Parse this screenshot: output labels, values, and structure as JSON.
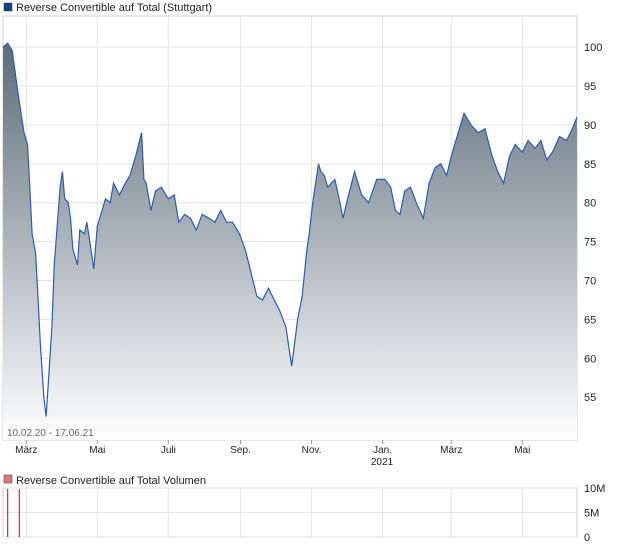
{
  "chart_data": [
    {
      "type": "area",
      "legend_label": "Reverse Convertible auf Total  (Stuttgart)",
      "legend_color": "#1f3c88",
      "line_color": "#2a5bb5",
      "fill_top_color": "#5c6c7a",
      "fill_bottom_color": "#ffffff",
      "ylim": [
        49.5,
        104
      ],
      "y_scale": "linear-plotted",
      "yticks": [
        100,
        95,
        90,
        85,
        80,
        75,
        70,
        65,
        60,
        55
      ],
      "x_range": [
        "2020-02-10",
        "2021-06-17"
      ],
      "xtick_labels": [
        {
          "date": "2020-03-01",
          "label": "März"
        },
        {
          "date": "2020-05-01",
          "label": "Mai"
        },
        {
          "date": "2020-07-01",
          "label": "Juli"
        },
        {
          "date": "2020-09-01",
          "label": "Sep."
        },
        {
          "date": "2020-11-01",
          "label": "Nov."
        },
        {
          "date": "2021-01-01",
          "label": "Jan."
        },
        {
          "date": "2021-03-01",
          "label": "März"
        },
        {
          "date": "2021-05-01",
          "label": "Mai"
        }
      ],
      "year_label": "2021",
      "date_range_label": "10.02.20 - 17.06.21",
      "grid": true,
      "series": [
        {
          "x": [
            "2020-02-10",
            "2020-02-14",
            "2020-02-18",
            "2020-02-22",
            "2020-02-26",
            "2020-02-28",
            "2020-03-02",
            "2020-03-04",
            "2020-03-06",
            "2020-03-09",
            "2020-03-11",
            "2020-03-13",
            "2020-03-16",
            "2020-03-18",
            "2020-03-20",
            "2020-03-23",
            "2020-03-25",
            "2020-03-27",
            "2020-03-30",
            "2020-04-01",
            "2020-04-03",
            "2020-04-06",
            "2020-04-08",
            "2020-04-10",
            "2020-04-14",
            "2020-04-16",
            "2020-04-20",
            "2020-04-22",
            "2020-04-24",
            "2020-04-28",
            "2020-05-01",
            "2020-05-05",
            "2020-05-08",
            "2020-05-12",
            "2020-05-15",
            "2020-05-20",
            "2020-05-25",
            "2020-05-29",
            "2020-06-03",
            "2020-06-08",
            "2020-06-10",
            "2020-06-12",
            "2020-06-16",
            "2020-06-20",
            "2020-06-25",
            "2020-07-01",
            "2020-07-06",
            "2020-07-10",
            "2020-07-15",
            "2020-07-20",
            "2020-07-25",
            "2020-07-30",
            "2020-08-05",
            "2020-08-10",
            "2020-08-15",
            "2020-08-20",
            "2020-08-25",
            "2020-08-31",
            "2020-09-05",
            "2020-09-10",
            "2020-09-15",
            "2020-09-20",
            "2020-09-25",
            "2020-09-30",
            "2020-10-05",
            "2020-10-10",
            "2020-10-15",
            "2020-10-20",
            "2020-10-24",
            "2020-10-28",
            "2020-10-30",
            "2020-11-02",
            "2020-11-05",
            "2020-11-07",
            "2020-11-09",
            "2020-11-12",
            "2020-11-15",
            "2020-11-18",
            "2020-11-21",
            "2020-11-24",
            "2020-11-28",
            "2020-12-02",
            "2020-12-08",
            "2020-12-14",
            "2020-12-20",
            "2020-12-27",
            "2021-01-03",
            "2021-01-08",
            "2021-01-12",
            "2021-01-16",
            "2021-01-20",
            "2021-01-25",
            "2021-01-30",
            "2021-02-05",
            "2021-02-10",
            "2021-02-15",
            "2021-02-20",
            "2021-02-25",
            "2021-03-01",
            "2021-03-06",
            "2021-03-12",
            "2021-03-18",
            "2021-03-24",
            "2021-03-30",
            "2021-04-05",
            "2021-04-10",
            "2021-04-15",
            "2021-04-20",
            "2021-04-25",
            "2021-05-01",
            "2021-05-06",
            "2021-05-12",
            "2021-05-17",
            "2021-05-22",
            "2021-05-27",
            "2021-06-02",
            "2021-06-08",
            "2021-06-13",
            "2021-06-17"
          ],
          "y": [
            100.0,
            100.5,
            99.5,
            95.0,
            91.0,
            89.0,
            87.5,
            82.0,
            76.0,
            73.5,
            68.0,
            62.0,
            55.0,
            52.5,
            57.0,
            64.0,
            72.0,
            76.0,
            82.0,
            84.0,
            80.5,
            80.0,
            78.0,
            74.0,
            72.0,
            76.5,
            76.0,
            77.5,
            75.5,
            71.5,
            77.0,
            79.0,
            80.5,
            80.0,
            82.5,
            81.0,
            82.5,
            83.5,
            86.0,
            89.0,
            83.0,
            82.5,
            79.0,
            81.5,
            82.0,
            80.5,
            81.0,
            77.5,
            78.5,
            78.0,
            76.5,
            78.5,
            78.0,
            77.5,
            79.0,
            77.5,
            77.5,
            76.0,
            74.0,
            71.0,
            68.0,
            67.5,
            69.0,
            67.5,
            66.0,
            64.0,
            59.0,
            65.0,
            68.0,
            74.0,
            76.0,
            80.0,
            83.0,
            85.0,
            84.0,
            83.5,
            82.0,
            82.5,
            83.0,
            81.0,
            78.0,
            80.5,
            84.0,
            81.0,
            80.0,
            83.0,
            83.0,
            82.0,
            79.0,
            78.5,
            81.5,
            82.0,
            80.0,
            78.0,
            82.5,
            84.5,
            85.0,
            83.5,
            86.0,
            88.5,
            91.5,
            90.0,
            89.0,
            89.5,
            86.0,
            84.0,
            82.5,
            86.0,
            87.5,
            86.5,
            88.0,
            87.0,
            88.0,
            85.5,
            86.5,
            88.5,
            88.0,
            89.5,
            91.0
          ]
        }
      ]
    },
    {
      "type": "bar",
      "legend_label": "Reverse Convertible auf Total  Volumen",
      "legend_color": "#d97a7a",
      "bar_color": "#c0392b",
      "ylim": [
        0,
        10000000
      ],
      "ytick_labels": [
        "10M",
        "5M",
        "0"
      ],
      "yticks": [
        10000000,
        5000000,
        0
      ],
      "grid": true,
      "series": [
        {
          "x": [
            "2020-02-14",
            "2020-02-24"
          ],
          "y": [
            9800000,
            9800000
          ]
        }
      ]
    }
  ]
}
